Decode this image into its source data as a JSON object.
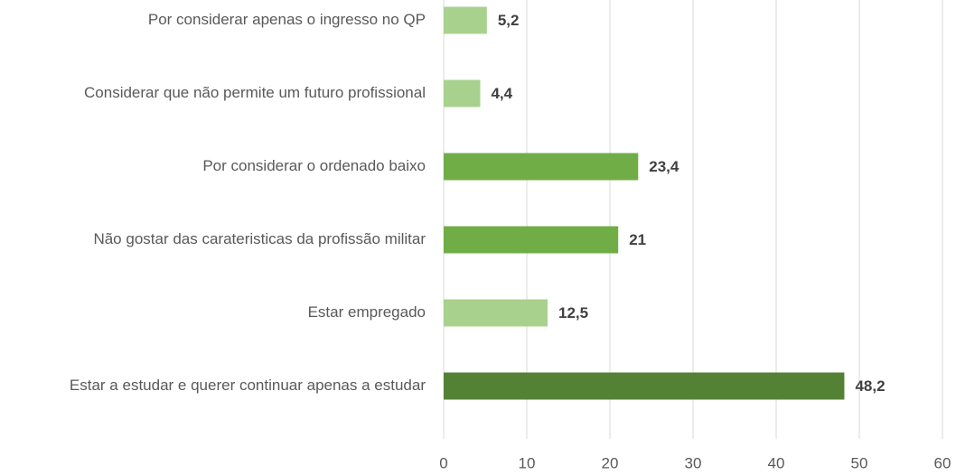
{
  "chart_data": {
    "type": "barh",
    "categories": [
      "Por considerar apenas o ingresso no QP",
      "Considerar que não permite um futuro profissional",
      "Por considerar o ordenado baixo",
      "Não gostar das carateristicas da profissão militar",
      "Estar empregado",
      "Estar a estudar e querer continuar apenas a estudar"
    ],
    "values": [
      5.2,
      4.4,
      23.4,
      21,
      12.5,
      48.2
    ],
    "value_labels": [
      "5,2",
      "4,4",
      "23,4",
      "21",
      "12,5",
      "48,2"
    ],
    "colors": [
      "#a9d18e",
      "#a9d18e",
      "#70ad47",
      "#70ad47",
      "#a9d18e",
      "#548235"
    ],
    "xlim": [
      0,
      60
    ],
    "xticks": [
      0,
      10,
      20,
      30,
      40,
      50,
      60
    ],
    "grid": true
  }
}
